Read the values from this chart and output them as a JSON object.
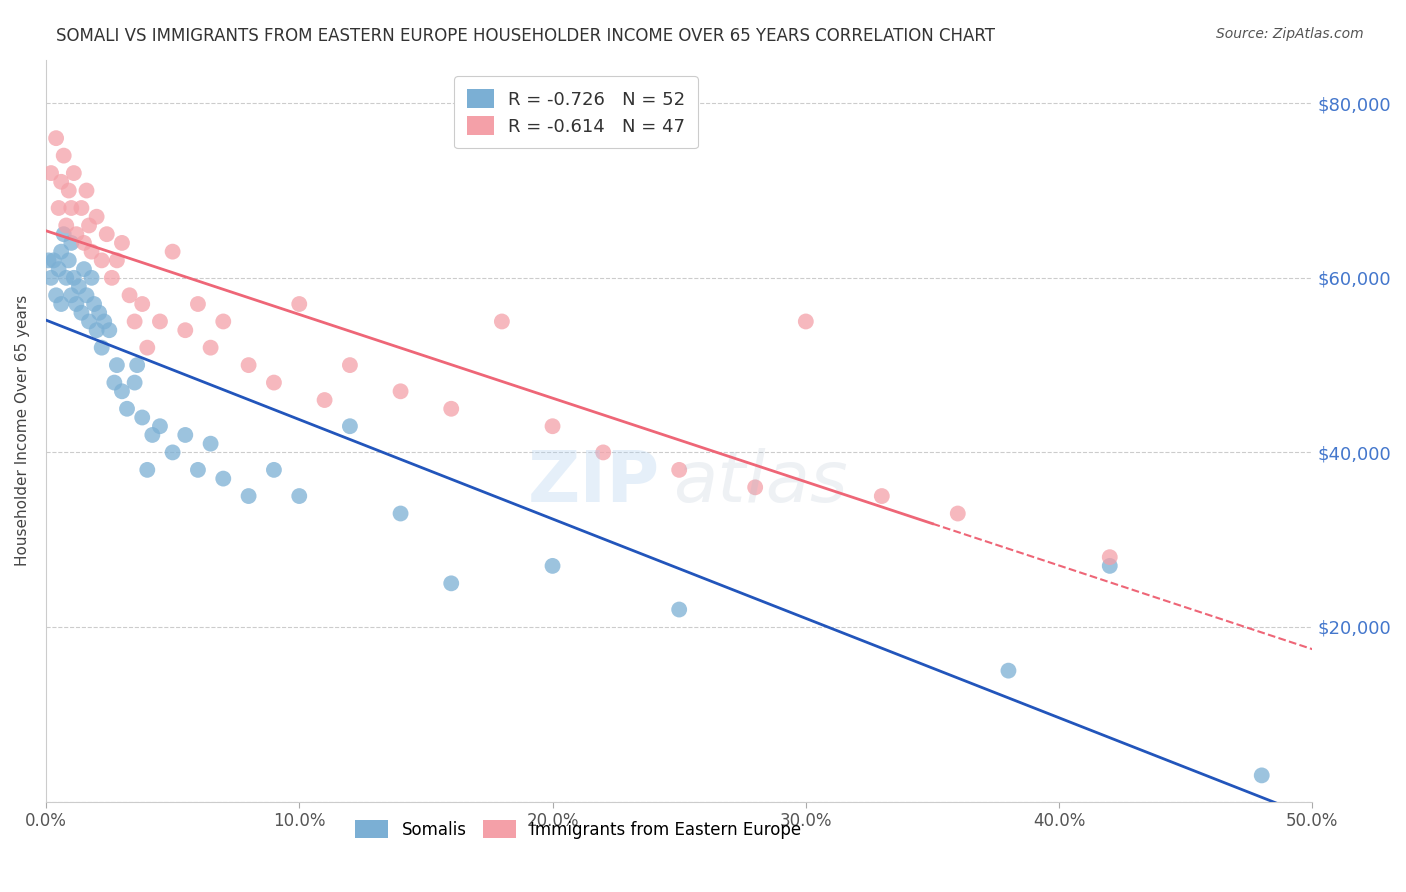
{
  "title": "SOMALI VS IMMIGRANTS FROM EASTERN EUROPE HOUSEHOLDER INCOME OVER 65 YEARS CORRELATION CHART",
  "source": "Source: ZipAtlas.com",
  "ylabel": "Householder Income Over 65 years",
  "xlabel_ticks": [
    "0.0%",
    "10.0%",
    "20.0%",
    "30.0%",
    "40.0%",
    "50.0%"
  ],
  "ylabel_ticks": [
    0,
    20000,
    40000,
    60000,
    80000
  ],
  "ylabel_labels": [
    "",
    "$20,000",
    "$40,000",
    "$60,000",
    "$80,000"
  ],
  "xlim": [
    0.0,
    0.5
  ],
  "ylim": [
    0,
    85000
  ],
  "somali_R": -0.726,
  "somali_N": 52,
  "eastern_R": -0.614,
  "eastern_N": 47,
  "somali_color": "#7BAFD4",
  "eastern_color": "#F4A0A8",
  "somali_line_color": "#2255BB",
  "eastern_line_color": "#EE6677",
  "background_color": "#FFFFFF",
  "grid_color": "#CCCCCC",
  "right_axis_color": "#4477CC",
  "somali_x": [
    0.001,
    0.002,
    0.003,
    0.004,
    0.005,
    0.006,
    0.006,
    0.007,
    0.008,
    0.009,
    0.01,
    0.01,
    0.011,
    0.012,
    0.013,
    0.014,
    0.015,
    0.016,
    0.017,
    0.018,
    0.019,
    0.02,
    0.021,
    0.022,
    0.023,
    0.025,
    0.027,
    0.028,
    0.03,
    0.032,
    0.035,
    0.036,
    0.038,
    0.04,
    0.042,
    0.045,
    0.05,
    0.055,
    0.06,
    0.065,
    0.07,
    0.08,
    0.09,
    0.1,
    0.12,
    0.14,
    0.16,
    0.2,
    0.25,
    0.38,
    0.42,
    0.48
  ],
  "somali_y": [
    62000,
    60000,
    62000,
    58000,
    61000,
    57000,
    63000,
    65000,
    60000,
    62000,
    58000,
    64000,
    60000,
    57000,
    59000,
    56000,
    61000,
    58000,
    55000,
    60000,
    57000,
    54000,
    56000,
    52000,
    55000,
    54000,
    48000,
    50000,
    47000,
    45000,
    48000,
    50000,
    44000,
    38000,
    42000,
    43000,
    40000,
    42000,
    38000,
    41000,
    37000,
    35000,
    38000,
    35000,
    43000,
    33000,
    25000,
    27000,
    22000,
    15000,
    27000,
    3000
  ],
  "eastern_x": [
    0.002,
    0.004,
    0.005,
    0.006,
    0.007,
    0.008,
    0.009,
    0.01,
    0.011,
    0.012,
    0.014,
    0.015,
    0.016,
    0.017,
    0.018,
    0.02,
    0.022,
    0.024,
    0.026,
    0.028,
    0.03,
    0.033,
    0.035,
    0.038,
    0.04,
    0.045,
    0.05,
    0.055,
    0.06,
    0.065,
    0.07,
    0.08,
    0.09,
    0.1,
    0.11,
    0.12,
    0.14,
    0.16,
    0.18,
    0.2,
    0.22,
    0.25,
    0.28,
    0.3,
    0.33,
    0.36,
    0.42
  ],
  "eastern_y": [
    72000,
    76000,
    68000,
    71000,
    74000,
    66000,
    70000,
    68000,
    72000,
    65000,
    68000,
    64000,
    70000,
    66000,
    63000,
    67000,
    62000,
    65000,
    60000,
    62000,
    64000,
    58000,
    55000,
    57000,
    52000,
    55000,
    63000,
    54000,
    57000,
    52000,
    55000,
    50000,
    48000,
    57000,
    46000,
    50000,
    47000,
    45000,
    55000,
    43000,
    40000,
    38000,
    36000,
    55000,
    35000,
    33000,
    28000
  ]
}
